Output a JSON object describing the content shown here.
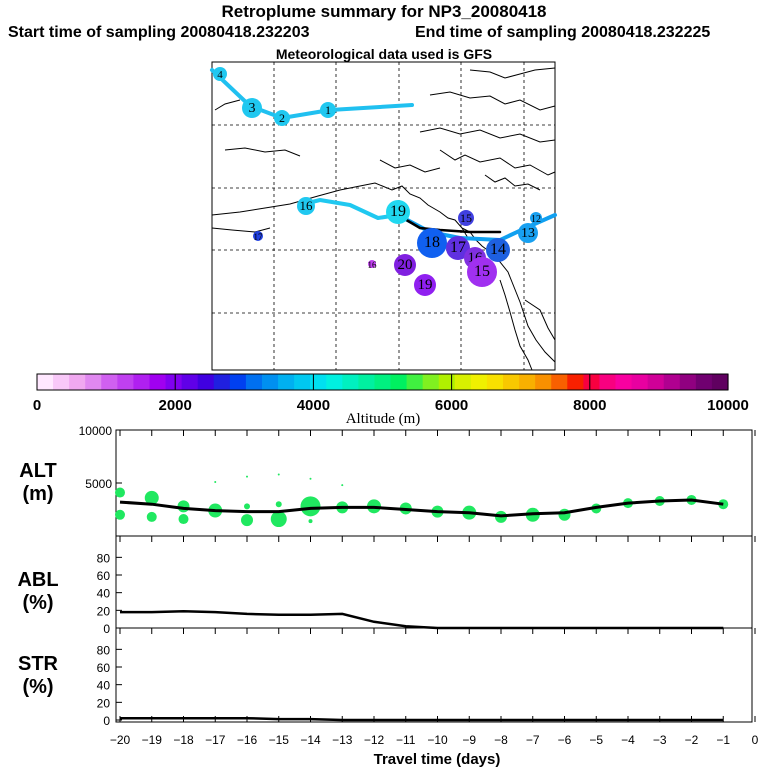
{
  "titles": {
    "main": "Retroplume summary for NP3_20080418",
    "start": "Start time of sampling 20080418.232203",
    "end": "End time of sampling 20080418.232225",
    "met": "Meteorological data used is GFS"
  },
  "colorbar": {
    "title": "Altitude (m)",
    "tick_labels": [
      "0",
      "2000",
      "4000",
      "6000",
      "8000",
      "10000"
    ],
    "colors": [
      "#ffe8ff",
      "#f8c8f8",
      "#f0a8f0",
      "#e088f0",
      "#d060f0",
      "#c040f0",
      "#b020f0",
      "#a000f0",
      "#8000f0",
      "#6000e8",
      "#4000e0",
      "#2020e0",
      "#0040f0",
      "#0070f0",
      "#0090f0",
      "#00b0f0",
      "#00c8f0",
      "#00e0f0",
      "#00f0e0",
      "#00f0c0",
      "#00f0a0",
      "#00f080",
      "#00f060",
      "#40f040",
      "#80f020",
      "#b0f000",
      "#d8f000",
      "#f0f000",
      "#f8e000",
      "#f8c800",
      "#f8b000",
      "#f89000",
      "#f86000",
      "#f82000",
      "#f80040",
      "#f80080",
      "#f800a0",
      "#e800a0",
      "#d00098",
      "#b00090",
      "#900080",
      "#700070",
      "#600060"
    ]
  },
  "map": {
    "trajectory_labels": [
      {
        "text": "1",
        "color": "#20c8f0",
        "r": 8
      },
      {
        "text": "2",
        "color": "#20c8f0",
        "r": 8
      },
      {
        "text": "3",
        "color": "#20c8f0",
        "r": 10
      },
      {
        "text": "4",
        "color": "#20c8f0",
        "r": 7
      },
      {
        "text": "18",
        "color": "#1060f0",
        "r": 15
      },
      {
        "text": "17",
        "color": "#6030e0",
        "r": 12
      },
      {
        "text": "16",
        "color": "#8030e0",
        "r": 11
      },
      {
        "text": "15",
        "color": "#a030f0",
        "r": 15
      },
      {
        "text": "14",
        "color": "#1e60e0",
        "r": 12
      },
      {
        "text": "13",
        "color": "#18a0f0",
        "r": 10
      },
      {
        "text": "12",
        "color": "#18a0f0",
        "r": 6
      },
      {
        "text": "20",
        "color": "#8020e0",
        "r": 11
      },
      {
        "text": "19",
        "color": "#9020f0",
        "r": 11
      },
      {
        "text": "19",
        "color": "#20d8f0",
        "r": 12
      },
      {
        "text": "16",
        "color": "#20c8f0",
        "r": 9
      },
      {
        "text": "17",
        "color": "#2040e0",
        "r": 5
      },
      {
        "text": "15",
        "color": "#4040e0",
        "r": 8
      },
      {
        "text": "16",
        "color": "#c040f0",
        "r": 4
      }
    ]
  },
  "panels": {
    "alt": {
      "label_line1": "ALT",
      "label_line2": "(m)"
    },
    "abl": {
      "label_line1": "ABL",
      "label_line2": "(%)"
    },
    "str": {
      "label_line1": "STR",
      "label_line2": "(%)"
    }
  },
  "chart_data": [
    {
      "type": "line",
      "name": "ALT",
      "title": "ALT (m)",
      "xlabel": "Travel time (days)",
      "ylabel": "ALT (m)",
      "xlim": [
        -20,
        0
      ],
      "ylim": [
        0,
        10000
      ],
      "y_ticks": [
        5000,
        10000
      ],
      "x": [
        -20,
        -19,
        -18,
        -17,
        -16,
        -15,
        -14,
        -13,
        -12,
        -11,
        -10,
        -9,
        -8,
        -7,
        -6,
        -5,
        -4,
        -3,
        -2,
        -1
      ],
      "values": [
        3200,
        3000,
        2600,
        2400,
        2300,
        2300,
        2600,
        2700,
        2700,
        2500,
        2300,
        2200,
        1900,
        2100,
        2200,
        2700,
        3100,
        3300,
        3400,
        3000
      ],
      "scatter": [
        {
          "x": -20,
          "y": 4100,
          "r": 5
        },
        {
          "x": -20,
          "y": 2000,
          "r": 5
        },
        {
          "x": -19,
          "y": 3600,
          "r": 7
        },
        {
          "x": -19,
          "y": 1800,
          "r": 5
        },
        {
          "x": -18,
          "y": 2800,
          "r": 6
        },
        {
          "x": -18,
          "y": 1600,
          "r": 5
        },
        {
          "x": -17,
          "y": 2400,
          "r": 7
        },
        {
          "x": -17,
          "y": 5100,
          "r": 1
        },
        {
          "x": -16,
          "y": 1500,
          "r": 6
        },
        {
          "x": -16,
          "y": 2800,
          "r": 3
        },
        {
          "x": -16,
          "y": 5600,
          "r": 1
        },
        {
          "x": -15,
          "y": 1600,
          "r": 8
        },
        {
          "x": -15,
          "y": 3000,
          "r": 3
        },
        {
          "x": -15,
          "y": 5800,
          "r": 1
        },
        {
          "x": -14,
          "y": 2800,
          "r": 10
        },
        {
          "x": -14,
          "y": 1400,
          "r": 2
        },
        {
          "x": -14,
          "y": 5400,
          "r": 1
        },
        {
          "x": -13,
          "y": 2700,
          "r": 6
        },
        {
          "x": -13,
          "y": 4800,
          "r": 1
        },
        {
          "x": -12,
          "y": 2800,
          "r": 7
        },
        {
          "x": -11,
          "y": 2600,
          "r": 6
        },
        {
          "x": -10,
          "y": 2300,
          "r": 6
        },
        {
          "x": -9,
          "y": 2200,
          "r": 7
        },
        {
          "x": -8,
          "y": 1800,
          "r": 6
        },
        {
          "x": -7,
          "y": 2000,
          "r": 7
        },
        {
          "x": -6,
          "y": 2000,
          "r": 6
        },
        {
          "x": -5,
          "y": 2600,
          "r": 5
        },
        {
          "x": -4,
          "y": 3100,
          "r": 5
        },
        {
          "x": -3,
          "y": 3300,
          "r": 5
        },
        {
          "x": -2,
          "y": 3400,
          "r": 5
        },
        {
          "x": -1,
          "y": 3000,
          "r": 5
        }
      ]
    },
    {
      "type": "line",
      "name": "ABL",
      "title": "ABL (%)",
      "xlabel": "Travel time (days)",
      "ylabel": "ABL (%)",
      "xlim": [
        -20,
        0
      ],
      "ylim": [
        0,
        100
      ],
      "y_ticks": [
        0,
        20,
        40,
        60,
        80
      ],
      "x": [
        -20,
        -19,
        -18,
        -17,
        -16,
        -15,
        -14,
        -13,
        -12,
        -11,
        -10,
        -9,
        -8,
        -7,
        -6,
        -5,
        -4,
        -3,
        -2,
        -1
      ],
      "values": [
        18,
        18,
        19,
        18,
        16,
        15,
        15,
        16,
        7,
        2,
        0,
        0,
        0,
        0,
        0,
        0,
        0,
        0,
        0,
        0
      ]
    },
    {
      "type": "line",
      "name": "STR",
      "title": "STR (%)",
      "xlabel": "Travel time (days)",
      "ylabel": "STR (%)",
      "xlim": [
        -20,
        0
      ],
      "ylim": [
        0,
        100
      ],
      "y_ticks": [
        0,
        20,
        40,
        60,
        80
      ],
      "x": [
        -20,
        -19,
        -18,
        -17,
        -16,
        -15,
        -14,
        -13,
        -12,
        -11,
        -10,
        -9,
        -8,
        -7,
        -6,
        -5,
        -4,
        -3,
        -2,
        -1
      ],
      "values": [
        2,
        2,
        2,
        2,
        2,
        1,
        1,
        0,
        0,
        0,
        0,
        0,
        0,
        0,
        0,
        0,
        0,
        0,
        0,
        0
      ]
    }
  ],
  "x_axis": {
    "tick_labels": [
      "−20",
      "−19",
      "−18",
      "−17",
      "−16",
      "−15",
      "−14",
      "−13",
      "−12",
      "−11",
      "−10",
      "−9",
      "−8",
      "−7",
      "−6",
      "−5",
      "−4",
      "−3",
      "−2",
      "−1",
      "0"
    ],
    "title": "Travel time (days)"
  }
}
